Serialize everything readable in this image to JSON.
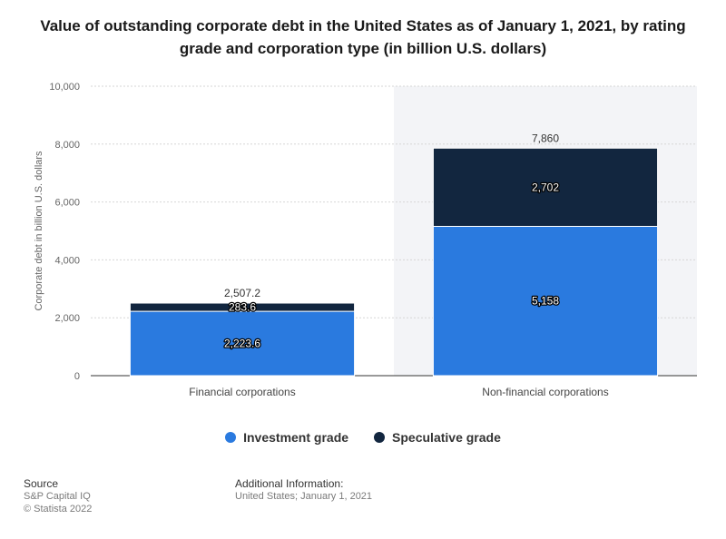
{
  "title": "Value of outstanding corporate debt in the United States as of January 1, 2021, by rating grade and corporation type (in billion U.S. dollars)",
  "colors": {
    "investment": "#2a7adf",
    "speculative": "#12263f",
    "shade": "#f3f4f7",
    "grid": "#d6d6d6"
  },
  "chart_data": {
    "type": "bar",
    "stacked": true,
    "categories": [
      "Financial corporations",
      "Non-financial corporations"
    ],
    "series": [
      {
        "name": "Investment grade",
        "values": [
          2223.6,
          5158
        ],
        "labels": [
          "2,223.6",
          "5,158"
        ],
        "color": "#2a7adf"
      },
      {
        "name": "Speculative grade",
        "values": [
          283.6,
          2702
        ],
        "labels": [
          "283.6",
          "2,702"
        ],
        "color": "#12263f"
      }
    ],
    "totals": [
      "2,507.2",
      "7,860"
    ],
    "total_values": [
      2507.2,
      7860
    ],
    "ylabel": "Corporate debt in billion U.S. dollars",
    "xlabel": "",
    "ylim": [
      0,
      10000
    ],
    "yticks": [
      0,
      2000,
      4000,
      6000,
      8000,
      10000
    ],
    "ytick_labels": [
      "0",
      "2,000",
      "4,000",
      "6,000",
      "8,000",
      "10,000"
    ],
    "grid": true,
    "legend_position": "bottom"
  },
  "legend": {
    "investment": "Investment grade",
    "speculative": "Speculative grade"
  },
  "footer": {
    "source_head": "Source",
    "source_line1": "S&P Capital IQ",
    "source_line2": "© Statista 2022",
    "info_head": "Additional Information:",
    "info_line": "United States; January 1, 2021"
  }
}
